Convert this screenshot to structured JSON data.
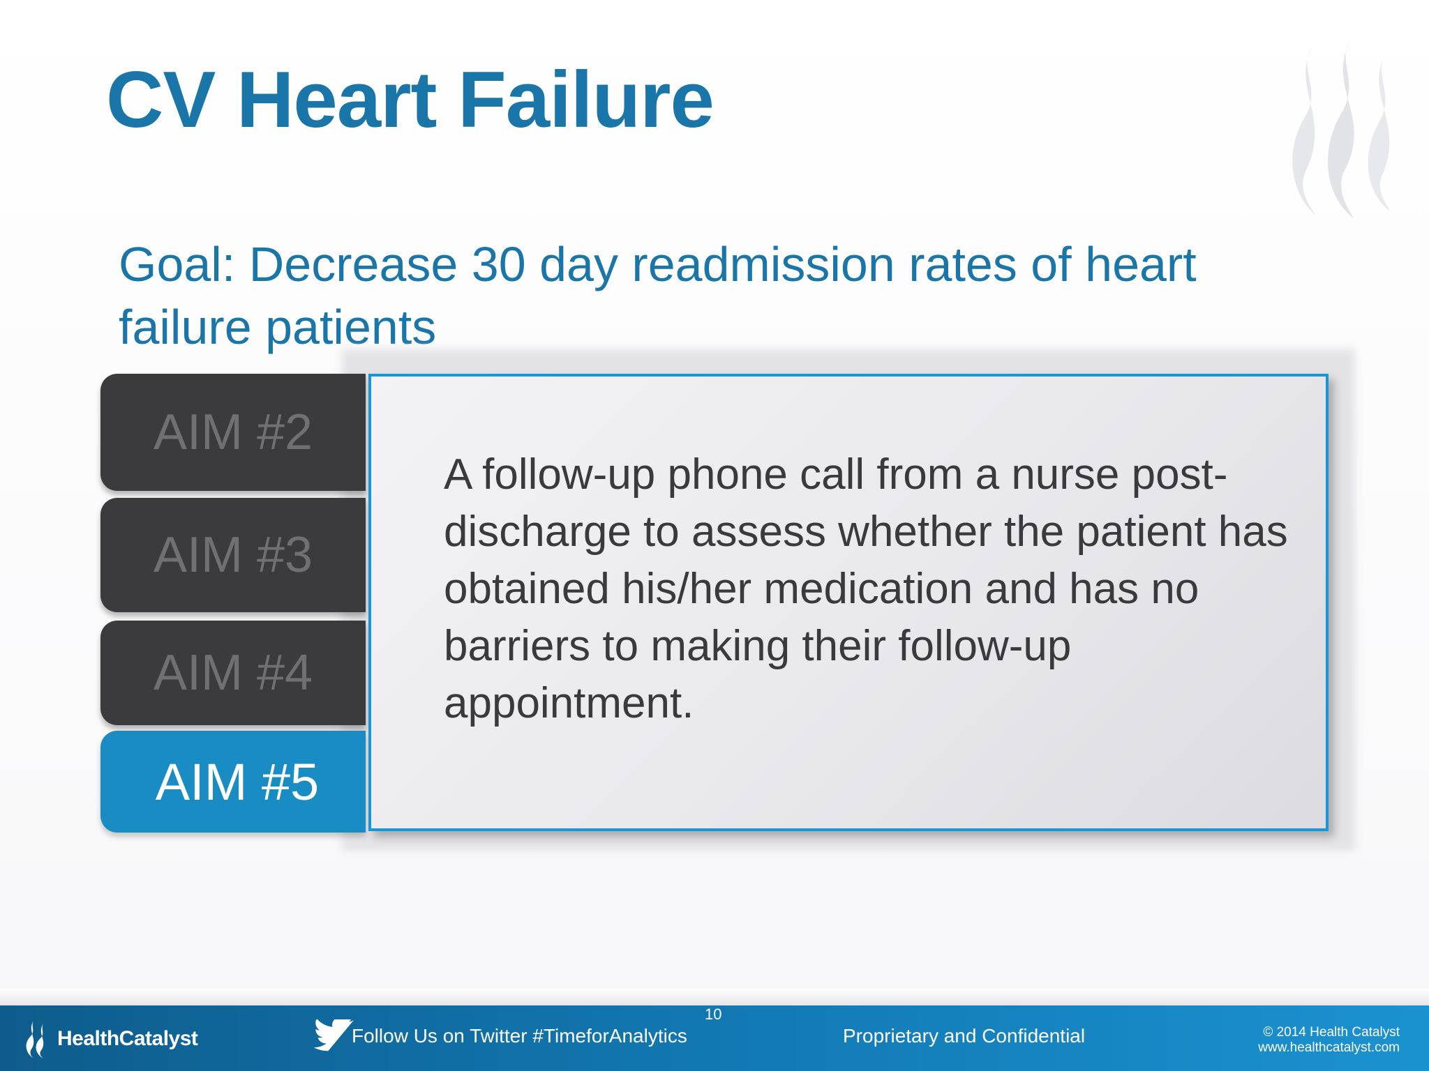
{
  "slide": {
    "title": "CV Heart Failure",
    "goal": "Goal: Decrease 30 day readmission rates of heart failure patients"
  },
  "aims": {
    "tabs": [
      {
        "label": "AIM #2",
        "active": false
      },
      {
        "label": "AIM #3",
        "active": false
      },
      {
        "label": "AIM #4",
        "active": false
      },
      {
        "label": "AIM #5",
        "active": true
      }
    ],
    "active_text": "A follow-up phone call from a nurse post-discharge to assess whether the patient has obtained his/her medication and has no barriers to making their follow-up appointment."
  },
  "footer": {
    "logo_text": "HealthCatalyst",
    "page_number": "10",
    "twitter_text": "Follow Us on Twitter #TimeforAnalytics",
    "proprietary": "Proprietary and Confidential",
    "copyright": "© 2014 Health Catalyst",
    "website": "www.healthcatalyst.com"
  },
  "colors": {
    "title_blue": "#1a75a8",
    "active_tab": "#1a8cc4",
    "inactive_tab": "#3b3a3c",
    "box_border": "#1a96d4"
  },
  "icons": {
    "watermark": "flame-logo-icon",
    "logo": "health-catalyst-flame-icon",
    "twitter": "twitter-bird-icon"
  }
}
